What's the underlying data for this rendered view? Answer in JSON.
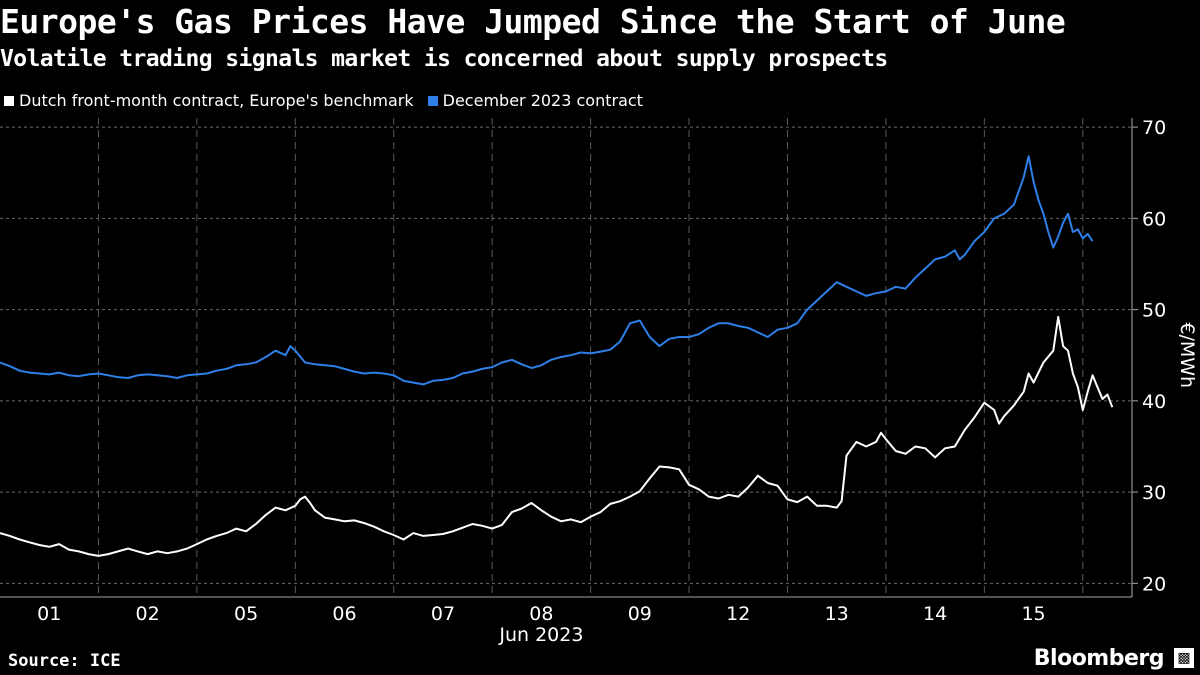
{
  "header": {
    "title": "Europe's Gas Prices Have Jumped Since the Start of June",
    "subtitle": "Volatile trading signals market is concerned about supply prospects"
  },
  "legend": {
    "items": [
      {
        "label": "Dutch front-month contract, Europe's benchmark",
        "color": "#ffffff"
      },
      {
        "label": "December 2023 contract",
        "color": "#2e7fe8"
      }
    ]
  },
  "footer": {
    "source": "Source: ICE",
    "brand": "Bloomberg",
    "brand_icon": "chart-badge-icon"
  },
  "chart_data": {
    "type": "line",
    "title": "Europe's Gas Prices Have Jumped Since the Start of June",
    "xlabel": "Jun 2023",
    "ylabel": "€/MWh",
    "ylim": [
      18.5,
      71
    ],
    "yticks": [
      20,
      30,
      40,
      50,
      60,
      70
    ],
    "grid": true,
    "x_categories": [
      "01",
      "02",
      "05",
      "06",
      "07",
      "08",
      "09",
      "12",
      "13",
      "14",
      "15"
    ],
    "x_range": [
      0,
      11.5
    ],
    "series": [
      {
        "name": "Dutch front-month contract, Europe's benchmark",
        "color": "#ffffff",
        "points": [
          [
            0.0,
            25.5
          ],
          [
            0.1,
            25.2
          ],
          [
            0.2,
            24.8
          ],
          [
            0.3,
            24.5
          ],
          [
            0.4,
            24.2
          ],
          [
            0.5,
            24.0
          ],
          [
            0.6,
            24.3
          ],
          [
            0.7,
            23.7
          ],
          [
            0.8,
            23.5
          ],
          [
            0.9,
            23.2
          ],
          [
            1.0,
            23.0
          ],
          [
            1.1,
            23.2
          ],
          [
            1.2,
            23.5
          ],
          [
            1.3,
            23.8
          ],
          [
            1.4,
            23.5
          ],
          [
            1.5,
            23.2
          ],
          [
            1.6,
            23.5
          ],
          [
            1.7,
            23.3
          ],
          [
            1.8,
            23.5
          ],
          [
            1.9,
            23.8
          ],
          [
            2.0,
            24.3
          ],
          [
            2.1,
            24.8
          ],
          [
            2.2,
            25.2
          ],
          [
            2.3,
            25.5
          ],
          [
            2.4,
            26.0
          ],
          [
            2.5,
            25.7
          ],
          [
            2.6,
            26.5
          ],
          [
            2.7,
            27.5
          ],
          [
            2.8,
            28.3
          ],
          [
            2.9,
            28.0
          ],
          [
            3.0,
            28.5
          ],
          [
            3.05,
            29.2
          ],
          [
            3.1,
            29.5
          ],
          [
            3.15,
            28.8
          ],
          [
            3.2,
            28.0
          ],
          [
            3.3,
            27.2
          ],
          [
            3.4,
            27.0
          ],
          [
            3.5,
            26.8
          ],
          [
            3.6,
            26.9
          ],
          [
            3.7,
            26.6
          ],
          [
            3.8,
            26.2
          ],
          [
            3.9,
            25.7
          ],
          [
            4.0,
            25.3
          ],
          [
            4.1,
            24.8
          ],
          [
            4.2,
            25.5
          ],
          [
            4.3,
            25.2
          ],
          [
            4.4,
            25.3
          ],
          [
            4.5,
            25.4
          ],
          [
            4.6,
            25.7
          ],
          [
            4.7,
            26.1
          ],
          [
            4.8,
            26.5
          ],
          [
            4.9,
            26.3
          ],
          [
            5.0,
            26.0
          ],
          [
            5.1,
            26.4
          ],
          [
            5.2,
            27.8
          ],
          [
            5.3,
            28.2
          ],
          [
            5.4,
            28.8
          ],
          [
            5.5,
            28.0
          ],
          [
            5.6,
            27.3
          ],
          [
            5.7,
            26.8
          ],
          [
            5.8,
            27.0
          ],
          [
            5.9,
            26.7
          ],
          [
            6.0,
            27.3
          ],
          [
            6.1,
            27.8
          ],
          [
            6.2,
            28.7
          ],
          [
            6.3,
            29.0
          ],
          [
            6.4,
            29.5
          ],
          [
            6.5,
            30.1
          ],
          [
            6.6,
            31.5
          ],
          [
            6.7,
            32.8
          ],
          [
            6.8,
            32.7
          ],
          [
            6.9,
            32.5
          ],
          [
            7.0,
            30.8
          ],
          [
            7.1,
            30.3
          ],
          [
            7.2,
            29.5
          ],
          [
            7.3,
            29.3
          ],
          [
            7.4,
            29.7
          ],
          [
            7.5,
            29.5
          ],
          [
            7.6,
            30.5
          ],
          [
            7.7,
            31.8
          ],
          [
            7.8,
            31.0
          ],
          [
            7.9,
            30.7
          ],
          [
            8.0,
            29.2
          ],
          [
            8.1,
            28.9
          ],
          [
            8.2,
            29.5
          ],
          [
            8.3,
            28.5
          ],
          [
            8.4,
            28.5
          ],
          [
            8.5,
            28.3
          ],
          [
            8.55,
            29.0
          ],
          [
            8.6,
            34.0
          ],
          [
            8.7,
            35.5
          ],
          [
            8.8,
            35.0
          ],
          [
            8.9,
            35.5
          ],
          [
            8.95,
            36.5
          ],
          [
            9.0,
            35.8
          ],
          [
            9.1,
            34.5
          ],
          [
            9.2,
            34.2
          ],
          [
            9.3,
            35.0
          ],
          [
            9.4,
            34.8
          ],
          [
            9.5,
            33.8
          ],
          [
            9.6,
            34.8
          ],
          [
            9.7,
            35.0
          ],
          [
            9.8,
            36.8
          ],
          [
            9.9,
            38.2
          ],
          [
            10.0,
            39.8
          ],
          [
            10.1,
            39.0
          ],
          [
            10.15,
            37.5
          ],
          [
            10.2,
            38.3
          ],
          [
            10.3,
            39.5
          ],
          [
            10.4,
            41.0
          ],
          [
            10.45,
            43.0
          ],
          [
            10.5,
            42.0
          ],
          [
            10.6,
            44.2
          ],
          [
            10.7,
            45.5
          ],
          [
            10.75,
            49.2
          ],
          [
            10.8,
            46.0
          ],
          [
            10.85,
            45.5
          ],
          [
            10.9,
            43.0
          ],
          [
            10.95,
            41.5
          ],
          [
            11.0,
            39.0
          ],
          [
            11.05,
            41.0
          ],
          [
            11.1,
            42.8
          ],
          [
            11.15,
            41.5
          ],
          [
            11.2,
            40.2
          ],
          [
            11.25,
            40.7
          ],
          [
            11.3,
            39.3
          ]
        ]
      },
      {
        "name": "December 2023 contract",
        "color": "#2e7fe8",
        "points": [
          [
            0.0,
            44.2
          ],
          [
            0.1,
            43.8
          ],
          [
            0.2,
            43.3
          ],
          [
            0.3,
            43.1
          ],
          [
            0.4,
            43.0
          ],
          [
            0.5,
            42.9
          ],
          [
            0.6,
            43.1
          ],
          [
            0.7,
            42.8
          ],
          [
            0.8,
            42.7
          ],
          [
            0.9,
            42.9
          ],
          [
            1.0,
            43.0
          ],
          [
            1.1,
            42.8
          ],
          [
            1.2,
            42.6
          ],
          [
            1.3,
            42.5
          ],
          [
            1.4,
            42.8
          ],
          [
            1.5,
            42.9
          ],
          [
            1.6,
            42.8
          ],
          [
            1.7,
            42.7
          ],
          [
            1.8,
            42.5
          ],
          [
            1.9,
            42.8
          ],
          [
            2.0,
            42.9
          ],
          [
            2.1,
            43.0
          ],
          [
            2.2,
            43.3
          ],
          [
            2.3,
            43.5
          ],
          [
            2.4,
            43.9
          ],
          [
            2.5,
            44.0
          ],
          [
            2.6,
            44.2
          ],
          [
            2.7,
            44.8
          ],
          [
            2.8,
            45.5
          ],
          [
            2.9,
            45.0
          ],
          [
            2.95,
            46.0
          ],
          [
            3.0,
            45.5
          ],
          [
            3.1,
            44.2
          ],
          [
            3.2,
            44.0
          ],
          [
            3.3,
            43.9
          ],
          [
            3.4,
            43.8
          ],
          [
            3.5,
            43.5
          ],
          [
            3.6,
            43.2
          ],
          [
            3.7,
            43.0
          ],
          [
            3.8,
            43.1
          ],
          [
            3.9,
            43.0
          ],
          [
            4.0,
            42.8
          ],
          [
            4.1,
            42.2
          ],
          [
            4.2,
            42.0
          ],
          [
            4.3,
            41.8
          ],
          [
            4.4,
            42.2
          ],
          [
            4.5,
            42.3
          ],
          [
            4.6,
            42.5
          ],
          [
            4.7,
            43.0
          ],
          [
            4.8,
            43.2
          ],
          [
            4.9,
            43.5
          ],
          [
            5.0,
            43.7
          ],
          [
            5.1,
            44.2
          ],
          [
            5.2,
            44.5
          ],
          [
            5.3,
            44.0
          ],
          [
            5.4,
            43.6
          ],
          [
            5.5,
            43.9
          ],
          [
            5.6,
            44.5
          ],
          [
            5.7,
            44.8
          ],
          [
            5.8,
            45.0
          ],
          [
            5.9,
            45.3
          ],
          [
            6.0,
            45.2
          ],
          [
            6.1,
            45.4
          ],
          [
            6.2,
            45.6
          ],
          [
            6.3,
            46.5
          ],
          [
            6.4,
            48.5
          ],
          [
            6.5,
            48.8
          ],
          [
            6.6,
            47.0
          ],
          [
            6.7,
            46.0
          ],
          [
            6.8,
            46.8
          ],
          [
            6.9,
            47.0
          ],
          [
            7.0,
            47.0
          ],
          [
            7.1,
            47.3
          ],
          [
            7.2,
            48.0
          ],
          [
            7.3,
            48.5
          ],
          [
            7.4,
            48.5
          ],
          [
            7.5,
            48.2
          ],
          [
            7.6,
            48.0
          ],
          [
            7.7,
            47.5
          ],
          [
            7.8,
            47.0
          ],
          [
            7.9,
            47.8
          ],
          [
            8.0,
            48.0
          ],
          [
            8.1,
            48.5
          ],
          [
            8.2,
            50.0
          ],
          [
            8.3,
            51.0
          ],
          [
            8.4,
            52.0
          ],
          [
            8.5,
            53.0
          ],
          [
            8.6,
            52.5
          ],
          [
            8.7,
            52.0
          ],
          [
            8.8,
            51.5
          ],
          [
            8.9,
            51.8
          ],
          [
            9.0,
            52.0
          ],
          [
            9.1,
            52.5
          ],
          [
            9.2,
            52.3
          ],
          [
            9.3,
            53.5
          ],
          [
            9.4,
            54.5
          ],
          [
            9.5,
            55.5
          ],
          [
            9.6,
            55.8
          ],
          [
            9.7,
            56.5
          ],
          [
            9.75,
            55.5
          ],
          [
            9.8,
            56.0
          ],
          [
            9.9,
            57.5
          ],
          [
            10.0,
            58.5
          ],
          [
            10.1,
            60.0
          ],
          [
            10.2,
            60.5
          ],
          [
            10.3,
            61.5
          ],
          [
            10.35,
            63.0
          ],
          [
            10.4,
            64.5
          ],
          [
            10.45,
            66.8
          ],
          [
            10.5,
            64.0
          ],
          [
            10.55,
            62.0
          ],
          [
            10.6,
            60.5
          ],
          [
            10.65,
            58.5
          ],
          [
            10.7,
            56.8
          ],
          [
            10.75,
            58.0
          ],
          [
            10.8,
            59.5
          ],
          [
            10.85,
            60.5
          ],
          [
            10.9,
            58.5
          ],
          [
            10.95,
            58.8
          ],
          [
            11.0,
            57.8
          ],
          [
            11.05,
            58.3
          ],
          [
            11.1,
            57.5
          ]
        ]
      }
    ]
  }
}
